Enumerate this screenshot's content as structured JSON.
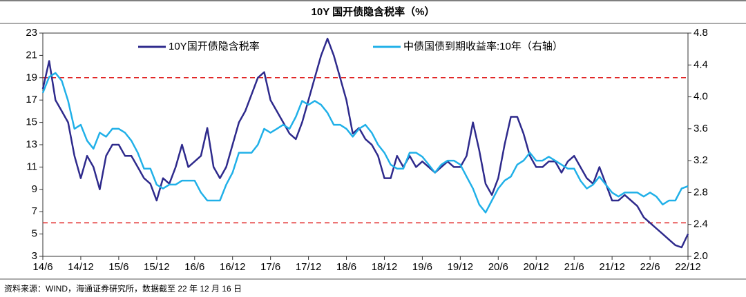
{
  "chart_data": {
    "type": "line",
    "title": "10Y 国开债隐含税率（%）",
    "source": "资料来源：WIND，海通证券研究所，数据截至 22 年 12 月 16 日",
    "categories": [
      "14/6",
      null,
      null,
      null,
      null,
      null,
      "14/12",
      null,
      null,
      null,
      null,
      null,
      "15/6",
      null,
      null,
      null,
      null,
      null,
      "15/12",
      null,
      null,
      null,
      null,
      null,
      "16/6",
      null,
      null,
      null,
      null,
      null,
      "16/12",
      null,
      null,
      null,
      null,
      null,
      "17/6",
      null,
      null,
      null,
      null,
      null,
      "17/12",
      null,
      null,
      null,
      null,
      null,
      "18/6",
      null,
      null,
      null,
      null,
      null,
      "18/12",
      null,
      null,
      null,
      null,
      null,
      "19/6",
      null,
      null,
      null,
      null,
      null,
      "19/12",
      null,
      null,
      null,
      null,
      null,
      "20/6",
      null,
      null,
      null,
      null,
      null,
      "20/12",
      null,
      null,
      null,
      null,
      null,
      "21/6",
      null,
      null,
      null,
      null,
      null,
      "21/12",
      null,
      null,
      null,
      null,
      null,
      "22/6",
      null,
      null,
      null,
      null,
      null,
      "22/12"
    ],
    "series": [
      {
        "name": "10Y国开债隐含税率",
        "color": "#2e2a8c",
        "axis": "y",
        "values": [
          18,
          20.5,
          17,
          16,
          15,
          12,
          10,
          12,
          11,
          9,
          12,
          13,
          13,
          12,
          12,
          11,
          10,
          9.5,
          8,
          10,
          9.5,
          11,
          13,
          11,
          11.5,
          12,
          14.5,
          11,
          10,
          11,
          13,
          15,
          16,
          17.5,
          19,
          19.5,
          17,
          16,
          15,
          14,
          13.5,
          15,
          17,
          19,
          21,
          22.5,
          21,
          19,
          17,
          14,
          14.5,
          13.5,
          13,
          12,
          10,
          10,
          12,
          11,
          12,
          11,
          11.5,
          11,
          10.5,
          11,
          11.5,
          11,
          11,
          12,
          15,
          12.5,
          9.5,
          8.5,
          10,
          13,
          15.5,
          15.5,
          14,
          12,
          11,
          11,
          11.5,
          11.5,
          10.5,
          11.5,
          12,
          11,
          10,
          9.5,
          11,
          9.5,
          8,
          8,
          8.5,
          8,
          7.5,
          6.5,
          6,
          5.5,
          5,
          4.5,
          4,
          3.8,
          5
        ]
      },
      {
        "name": "中债国债到期收益率:10年（右轴）",
        "color": "#20b0e8",
        "axis": "y2",
        "values": [
          4.05,
          4.25,
          4.3,
          4.2,
          3.95,
          3.6,
          3.65,
          3.45,
          3.35,
          3.55,
          3.5,
          3.6,
          3.6,
          3.55,
          3.45,
          3.3,
          3.1,
          3.1,
          2.9,
          2.85,
          2.9,
          2.9,
          2.95,
          2.95,
          2.95,
          2.8,
          2.7,
          2.7,
          2.7,
          2.9,
          3.05,
          3.3,
          3.3,
          3.3,
          3.4,
          3.6,
          3.55,
          3.6,
          3.65,
          3.6,
          3.75,
          3.95,
          3.9,
          3.95,
          3.9,
          3.8,
          3.65,
          3.65,
          3.6,
          3.5,
          3.6,
          3.65,
          3.55,
          3.4,
          3.3,
          3.15,
          3.1,
          3.1,
          3.3,
          3.3,
          3.25,
          3.15,
          3.05,
          3.15,
          3.2,
          3.2,
          3.15,
          3.0,
          2.85,
          2.65,
          2.55,
          2.7,
          2.85,
          2.95,
          3.0,
          3.15,
          3.2,
          3.3,
          3.2,
          3.2,
          3.25,
          3.2,
          3.15,
          3.1,
          3.1,
          2.95,
          2.85,
          2.9,
          3.0,
          2.9,
          2.8,
          2.75,
          2.8,
          2.8,
          2.8,
          2.75,
          2.8,
          2.75,
          2.65,
          2.7,
          2.7,
          2.85,
          2.88
        ]
      }
    ],
    "ylim": [
      3,
      23
    ],
    "yticks": [
      3,
      5,
      7,
      9,
      11,
      13,
      15,
      17,
      19,
      21,
      23
    ],
    "y2lim": [
      2,
      4.8
    ],
    "y2ticks": [
      {
        "value": 2,
        "label": "2.0"
      },
      2.4,
      2.8,
      3.2,
      3.6,
      {
        "value": 4,
        "label": "4.0"
      },
      4.4,
      4.8
    ],
    "hlines": [
      19,
      6
    ],
    "hline_color": "#e02020"
  }
}
